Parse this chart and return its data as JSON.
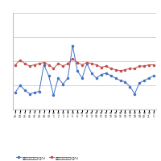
{
  "title": "",
  "blue_label": "ハイオク店頭価格(円/L)",
  "red_label": "ハイオク実売価格(円/L)",
  "x_labels": [
    "9\n23",
    "9\n24",
    "9\n25",
    "9\n26",
    "9\n27",
    "9\n28",
    "9\n29",
    "9\n30",
    "10\n1",
    "10\n2",
    "10\n3",
    "10\n4",
    "10\n5",
    "10\n6",
    "10\n7",
    "10\n8",
    "10\n9",
    "10\n10",
    "10\n11",
    "10\n12",
    "10\n13",
    "10\n14",
    "10\n15",
    "10\n16",
    "10\n17",
    "10\n18",
    "10\n19",
    "10\n20",
    "10\n21",
    "11\n1"
  ],
  "blue_values": [
    114,
    120,
    116,
    113,
    114,
    115,
    137,
    128,
    112,
    126,
    121,
    126,
    153,
    132,
    126,
    138,
    130,
    126,
    129,
    130,
    128,
    126,
    124,
    123,
    119,
    113,
    122,
    124,
    126,
    128
  ],
  "red_values": [
    137,
    141,
    138,
    136,
    137,
    138,
    139,
    137,
    134,
    138,
    136,
    138,
    142,
    139,
    137,
    139,
    138,
    137,
    135,
    136,
    134,
    133,
    132,
    133,
    134,
    134,
    136,
    136,
    137,
    137
  ],
  "blue_color": "#4472C4",
  "red_color": "#C0504D",
  "bg_color": "#FFFFFF",
  "grid_color": "#C0C0C0",
  "ylim_blue": [
    100,
    180
  ],
  "ylim": [
    100,
    180
  ],
  "ytick_step": 20
}
